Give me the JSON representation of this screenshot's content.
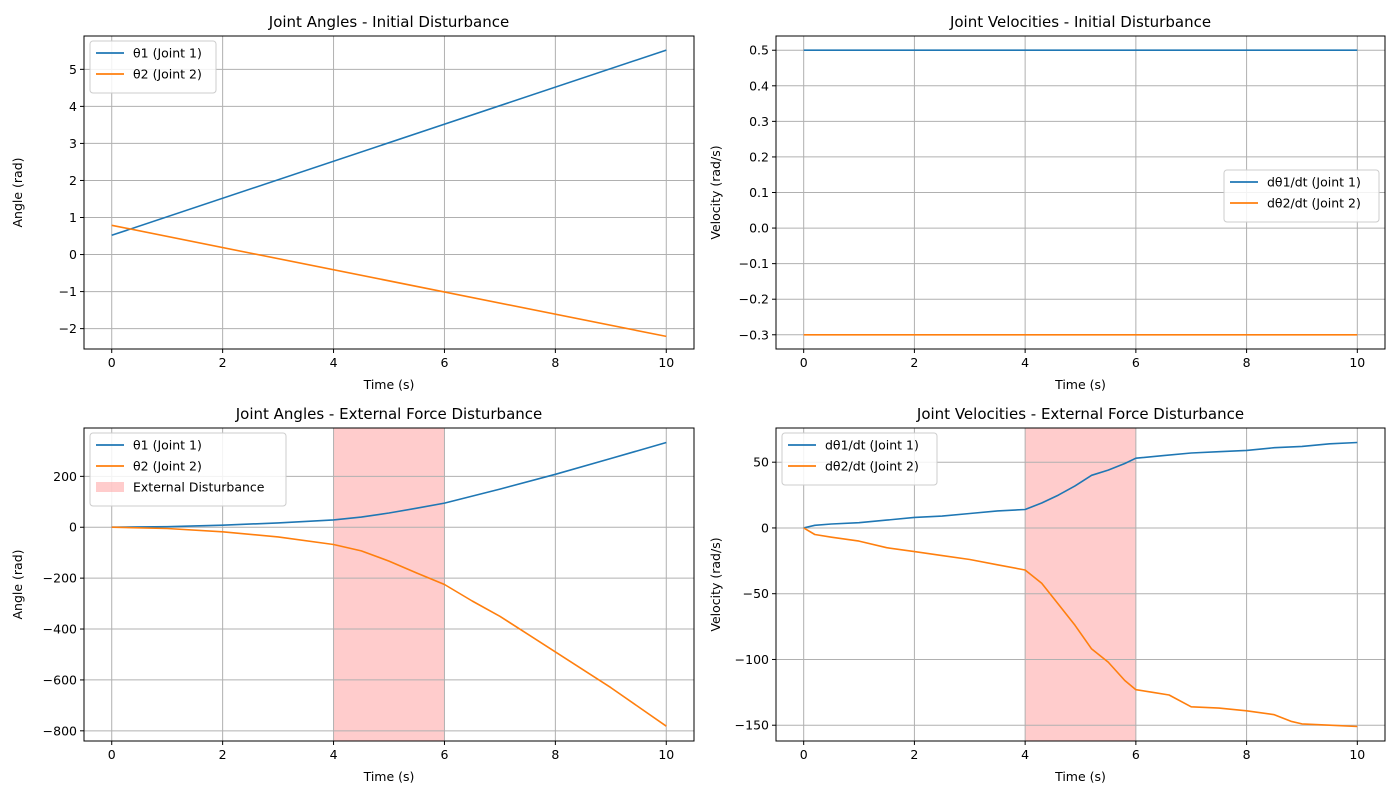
{
  "colors": {
    "series1": "#1f77b4",
    "series2": "#ff7f0e",
    "disturbance_fill": "#ff9999",
    "grid": "#b0b0b0"
  },
  "chart_data": [
    {
      "type": "line",
      "title": "Joint Angles - Initial Disturbance",
      "xlabel": "Time (s)",
      "ylabel": "Angle (rad)",
      "xlim": [
        -0.5,
        10.5
      ],
      "ylim": [
        -2.55,
        5.9
      ],
      "xticks": [
        0,
        2,
        4,
        6,
        8,
        10
      ],
      "yticks": [
        -2,
        -1,
        0,
        1,
        2,
        3,
        4,
        5
      ],
      "grid": true,
      "legend": "upper-left",
      "series": [
        {
          "name": "θ1 (Joint 1)",
          "color": "#1f77b4",
          "x": [
            0,
            10
          ],
          "y": [
            0.52,
            5.52
          ]
        },
        {
          "name": "θ2 (Joint 2)",
          "color": "#ff7f0e",
          "x": [
            0,
            10
          ],
          "y": [
            0.79,
            -2.21
          ]
        }
      ]
    },
    {
      "type": "line",
      "title": "Joint Velocities - Initial Disturbance",
      "xlabel": "Time (s)",
      "ylabel": "Velocity (rad/s)",
      "xlim": [
        -0.5,
        10.5
      ],
      "ylim": [
        -0.34,
        0.54
      ],
      "xticks": [
        0,
        2,
        4,
        6,
        8,
        10
      ],
      "yticks": [
        -0.3,
        -0.2,
        -0.1,
        0.0,
        0.1,
        0.2,
        0.3,
        0.4,
        0.5
      ],
      "ytick_labels": [
        "−0.3",
        "−0.2",
        "−0.1",
        "0.0",
        "0.1",
        "0.2",
        "0.3",
        "0.4",
        "0.5"
      ],
      "grid": true,
      "legend": "center-right",
      "series": [
        {
          "name": "dθ1/dt (Joint 1)",
          "color": "#1f77b4",
          "x": [
            0,
            10
          ],
          "y": [
            0.5,
            0.5
          ]
        },
        {
          "name": "dθ2/dt (Joint 2)",
          "color": "#ff7f0e",
          "x": [
            0,
            10
          ],
          "y": [
            -0.3,
            -0.3
          ]
        }
      ]
    },
    {
      "type": "line",
      "title": "Joint Angles - External Force Disturbance",
      "xlabel": "Time (s)",
      "ylabel": "Angle (rad)",
      "xlim": [
        -0.5,
        10.5
      ],
      "ylim": [
        -840,
        390
      ],
      "xticks": [
        0,
        2,
        4,
        6,
        8,
        10
      ],
      "yticks": [
        -800,
        -600,
        -400,
        -200,
        0,
        200
      ],
      "grid": true,
      "legend": "upper-left",
      "span": {
        "name": "External Disturbance",
        "x0": 4,
        "x1": 6
      },
      "series": [
        {
          "name": "θ1 (Joint 1)",
          "color": "#1f77b4",
          "x": [
            0,
            1,
            2,
            3,
            4,
            4.5,
            5,
            5.5,
            6,
            7,
            8,
            9,
            10
          ],
          "y": [
            0,
            2,
            8,
            17,
            29,
            40,
            56,
            75,
            95,
            150,
            208,
            270,
            333
          ]
        },
        {
          "name": "θ2 (Joint 2)",
          "color": "#ff7f0e",
          "x": [
            0,
            1,
            2,
            3,
            4,
            4.5,
            5,
            5.5,
            6,
            6.5,
            7,
            8,
            9,
            10
          ],
          "y": [
            0,
            -5,
            -18,
            -38,
            -68,
            -93,
            -133,
            -180,
            -225,
            -290,
            -350,
            -490,
            -630,
            -782
          ]
        }
      ]
    },
    {
      "type": "line",
      "title": "Joint Velocities - External Force Disturbance",
      "xlabel": "Time (s)",
      "ylabel": "Velocity (rad/s)",
      "xlim": [
        -0.5,
        10.5
      ],
      "ylim": [
        -162,
        76
      ],
      "xticks": [
        0,
        2,
        4,
        6,
        8,
        10
      ],
      "yticks": [
        -150,
        -100,
        -50,
        0,
        50
      ],
      "grid": true,
      "legend": "upper-left",
      "span": {
        "x0": 4,
        "x1": 6
      },
      "series": [
        {
          "name": "dθ1/dt (Joint 1)",
          "color": "#1f77b4",
          "x": [
            0,
            0.2,
            0.5,
            1,
            1.5,
            2,
            2.5,
            3,
            3.5,
            4,
            4.3,
            4.6,
            4.9,
            5.2,
            5.5,
            5.8,
            6,
            6.5,
            7,
            7.5,
            8,
            8.5,
            9,
            9.5,
            10
          ],
          "y": [
            0,
            2,
            3,
            4,
            6,
            8,
            9,
            11,
            13,
            14,
            19,
            25,
            32,
            40,
            44,
            49,
            53,
            55,
            57,
            58,
            59,
            61,
            62,
            64,
            65
          ]
        },
        {
          "name": "dθ2/dt (Joint 2)",
          "color": "#ff7f0e",
          "x": [
            0,
            0.2,
            0.5,
            1,
            1.5,
            2,
            2.5,
            3,
            3.5,
            4,
            4.3,
            4.6,
            4.9,
            5.2,
            5.5,
            5.8,
            6,
            6.3,
            6.6,
            7,
            7.5,
            8,
            8.5,
            8.8,
            9,
            9.5,
            10
          ],
          "y": [
            0,
            -5,
            -7,
            -10,
            -15,
            -18,
            -21,
            -24,
            -28,
            -32,
            -42,
            -58,
            -74,
            -92,
            -102,
            -116,
            -123,
            -125,
            -127,
            -136,
            -137,
            -139,
            -142,
            -147,
            -149,
            -150,
            -151
          ]
        }
      ]
    }
  ]
}
